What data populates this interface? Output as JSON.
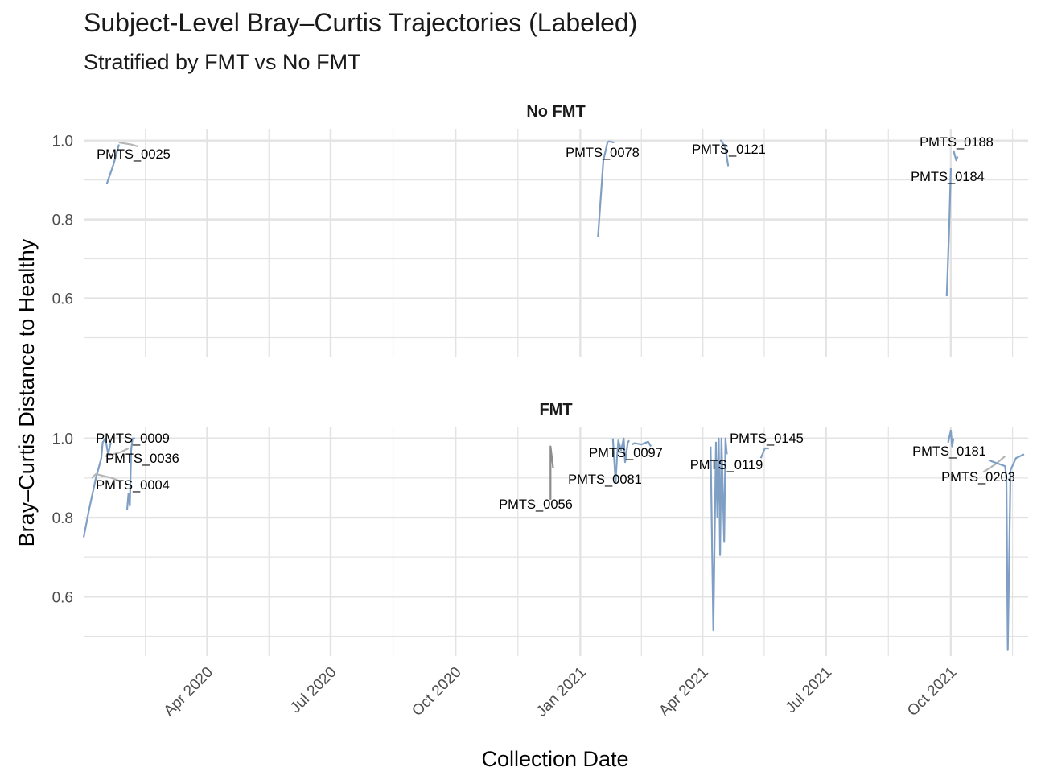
{
  "chart_data": {
    "type": "line",
    "title": "Subject-Level Bray–Curtis Trajectories (Labeled)",
    "subtitle": "Stratified by FMT vs No FMT",
    "xlabel": "Collection Date",
    "ylabel": "Bray–Curtis Distance to Healthy",
    "x_ticks": [
      "2020-04-01",
      "2020-07-01",
      "2020-10-01",
      "2021-01-01",
      "2021-04-01",
      "2021-07-01",
      "2021-10-01"
    ],
    "x_tick_labels": [
      "Apr 2020",
      "Jul 2020",
      "Oct 2020",
      "Jan 2021",
      "Apr 2021",
      "Jul 2021",
      "Oct 2021"
    ],
    "xlim": [
      "2020-01-01",
      "2021-11-27"
    ],
    "ylim": [
      0.45,
      1.03
    ],
    "y_ticks": [
      0.6,
      0.8,
      1.0
    ],
    "y_tick_labels": [
      "0.6",
      "0.8",
      "1.0"
    ],
    "grid": true,
    "legend": "none",
    "colors": {
      "blue": "#7f9fc4",
      "grey": "#b4b6b8",
      "dark": "#8c8c8c",
      "grid": "#e3e3e3"
    },
    "panels": [
      {
        "name": "No FMT",
        "series": [
          {
            "label": "PMTS_0025",
            "color": "#7f9fc4",
            "x": [
              "2020-01-18",
              "2020-01-23",
              "2020-01-27"
            ],
            "y": [
              0.89,
              0.94,
              0.99
            ]
          },
          {
            "label": "",
            "color": "#b4b6b8",
            "x": [
              "2020-01-27",
              "2020-02-05",
              "2020-02-10"
            ],
            "y": [
              0.995,
              0.99,
              0.985
            ]
          },
          {
            "label": "PMTS_0078",
            "color": "#7f9fc4",
            "x": [
              "2021-01-14",
              "2021-01-18",
              "2021-01-21",
              "2021-01-22",
              "2021-01-26"
            ],
            "y": [
              0.755,
              0.95,
              0.995,
              0.998,
              0.995
            ]
          },
          {
            "label": "PMTS_0121",
            "color": "#7f9fc4",
            "x": [
              "2021-04-14",
              "2021-04-15",
              "2021-04-18",
              "2021-04-20"
            ],
            "y": [
              1.0,
              1.0,
              0.98,
              0.935
            ]
          },
          {
            "label": "PMTS_0184",
            "color": "#7f9fc4",
            "x": [
              "2021-09-28",
              "2021-09-29",
              "2021-09-30",
              "2021-10-01"
            ],
            "y": [
              0.605,
              0.7,
              0.8,
              0.93
            ]
          },
          {
            "label": "PMTS_0188",
            "color": "#7f9fc4",
            "x": [
              "2021-10-03",
              "2021-10-05",
              "2021-10-06"
            ],
            "y": [
              0.975,
              0.95,
              0.96
            ]
          }
        ],
        "labels": [
          "PMTS_0025",
          "PMTS_0078",
          "PMTS_0121",
          "PMTS_0188",
          "PMTS_0184"
        ]
      },
      {
        "name": "FMT",
        "series": [
          {
            "label": "PMTS_0009",
            "color": "#7f9fc4",
            "x": [
              "2020-01-01",
              "2020-01-05",
              "2020-01-10",
              "2020-01-14",
              "2020-01-15",
              "2020-01-17",
              "2020-01-19",
              "2020-01-21"
            ],
            "y": [
              0.75,
              0.82,
              0.9,
              0.95,
              0.99,
              1.0,
              0.96,
              0.99
            ]
          },
          {
            "label": "PMTS_0004",
            "color": "#b4b6b8",
            "x": [
              "2020-01-07",
              "2020-01-10",
              "2020-01-22",
              "2020-01-29"
            ],
            "y": [
              0.9,
              0.91,
              0.9,
              0.89
            ]
          },
          {
            "label": "",
            "color": "#b4b6b8",
            "x": [
              "2020-01-17",
              "2020-01-28",
              "2020-02-03"
            ],
            "y": [
              0.955,
              0.965,
              0.975
            ]
          },
          {
            "label": "PMTS_0036",
            "color": "#7f9fc4",
            "x": [
              "2020-02-02",
              "2020-02-03",
              "2020-02-04",
              "2020-02-05",
              "2020-02-06",
              "2020-02-08"
            ],
            "y": [
              0.82,
              0.86,
              0.83,
              0.97,
              1.0,
              1.0
            ]
          },
          {
            "label": "PMTS_0056",
            "color": "#8c8c8c",
            "x": [
              "2020-12-10",
              "2020-12-10",
              "2020-12-12"
            ],
            "y": [
              0.845,
              0.98,
              0.925
            ]
          },
          {
            "label": "PMTS_0081",
            "color": "#7f9fc4",
            "x": [
              "2021-01-25",
              "2021-01-27",
              "2021-01-28",
              "2021-01-29",
              "2021-01-31",
              "2021-02-02",
              "2021-02-03",
              "2021-02-05",
              "2021-02-06"
            ],
            "y": [
              1.0,
              0.89,
              0.95,
              0.995,
              0.97,
              1.0,
              0.94,
              0.99,
              0.995
            ]
          },
          {
            "label": "PMTS_0097",
            "color": "#7f9fc4",
            "x": [
              "2021-02-08",
              "2021-02-10",
              "2021-02-15",
              "2021-02-20",
              "2021-02-22"
            ],
            "y": [
              0.985,
              0.988,
              0.985,
              0.992,
              0.98
            ]
          },
          {
            "label": "PMTS_0119",
            "color": "#7f9fc4",
            "x": [
              "2021-04-07",
              "2021-04-09",
              "2021-04-11",
              "2021-04-12",
              "2021-04-13",
              "2021-04-14",
              "2021-04-15",
              "2021-04-17",
              "2021-04-18",
              "2021-04-19"
            ],
            "y": [
              0.98,
              0.515,
              0.99,
              0.8,
              1.0,
              0.705,
              1.0,
              0.74,
              1.0,
              0.96
            ]
          },
          {
            "label": "PMTS_0145",
            "color": "#7f9fc4",
            "x": [
              "2021-05-14",
              "2021-05-17",
              "2021-05-20"
            ],
            "y": [
              0.95,
              0.975,
              0.975
            ]
          },
          {
            "label": "PMTS_0181",
            "color": "#7f9fc4",
            "x": [
              "2021-09-29",
              "2021-10-01",
              "2021-10-02",
              "2021-10-03"
            ],
            "y": [
              0.99,
              1.02,
              0.98,
              1.0
            ]
          },
          {
            "label": "PMTS_0203",
            "color": "#b4b6b8",
            "x": [
              "2021-10-25",
              "2021-11-03",
              "2021-11-10"
            ],
            "y": [
              0.915,
              0.935,
              0.955
            ]
          },
          {
            "label": "",
            "color": "#7f9fc4",
            "x": [
              "2021-10-29",
              "2021-11-10",
              "2021-11-11",
              "2021-11-12",
              "2021-11-14",
              "2021-11-18",
              "2021-11-24"
            ],
            "y": [
              0.945,
              0.93,
              0.9,
              0.465,
              0.92,
              0.95,
              0.96
            ]
          }
        ],
        "labels": [
          "PMTS_0009",
          "PMTS_0036",
          "PMTS_0004",
          "PMTS_0056",
          "PMTS_0097",
          "PMTS_0081",
          "PMTS_0145",
          "PMTS_0119",
          "PMTS_0181",
          "PMTS_0203"
        ]
      }
    ]
  }
}
